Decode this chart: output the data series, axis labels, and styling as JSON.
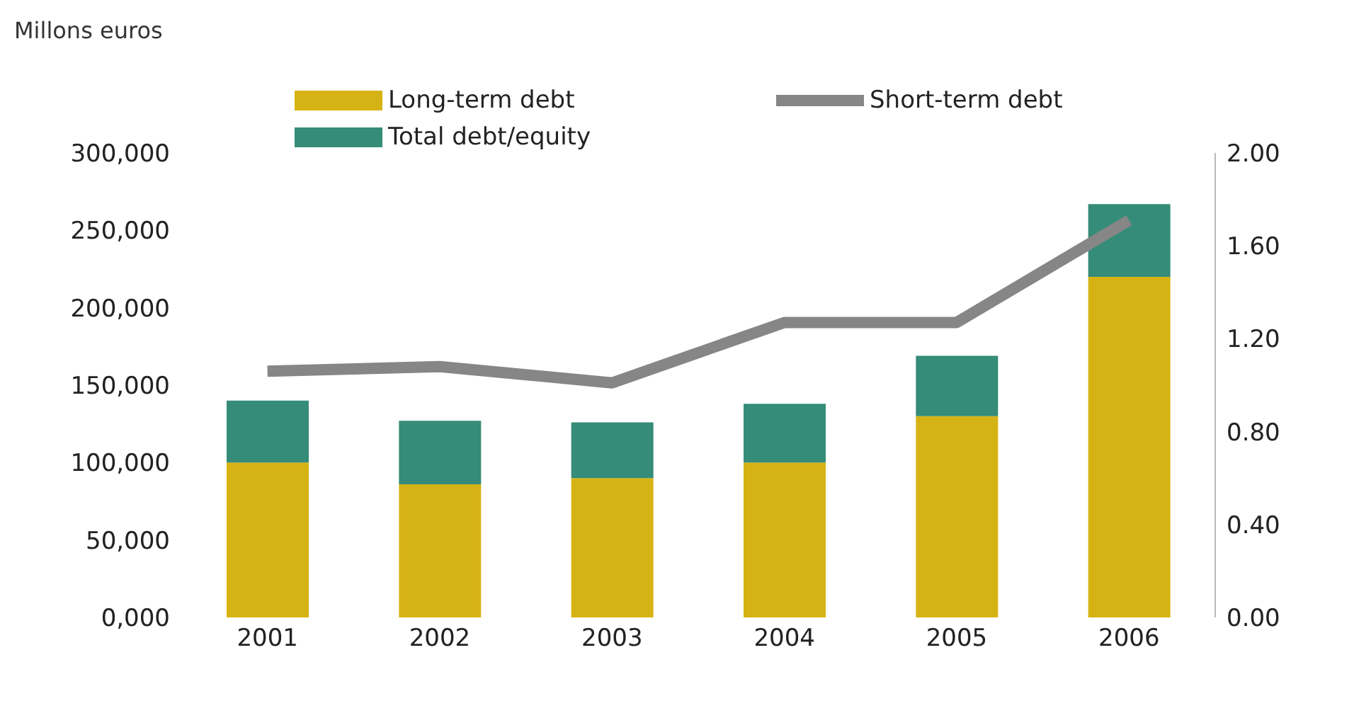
{
  "chart_data": {
    "type": "bar",
    "ylabel": "Millons euros",
    "categories": [
      "2001",
      "2002",
      "2003",
      "2004",
      "2005",
      "2006"
    ],
    "stacked": true,
    "legend": "top",
    "series": [
      {
        "name": "Long-term debt",
        "color": "#d6b314",
        "values": [
          100000,
          86000,
          90000,
          100000,
          130000,
          220000
        ]
      },
      {
        "name": "Total debt/equity",
        "color": "#358c78",
        "values": [
          40000,
          41000,
          36000,
          38000,
          39000,
          47000
        ]
      },
      {
        "name": "Short-term debt",
        "type": "line",
        "axis": "y2",
        "color": "#868686",
        "values": [
          1.06,
          1.08,
          1.01,
          1.27,
          1.27,
          1.71
        ]
      }
    ],
    "ylim": [
      0,
      300000
    ],
    "yticks": [
      {
        "value": 0,
        "label": "0,000"
      },
      {
        "value": 50000,
        "label": "50,000"
      },
      {
        "value": 100000,
        "label": "100,000"
      },
      {
        "value": 150000,
        "label": "150,000"
      },
      {
        "value": 200000,
        "label": "200,000"
      },
      {
        "value": 250000,
        "label": "250,000"
      },
      {
        "value": 300000,
        "label": "300,000"
      }
    ],
    "y2lim": [
      0,
      2
    ],
    "y2ticks": [
      {
        "value": 0,
        "label": "0.00"
      },
      {
        "value": 0.4,
        "label": "0.40"
      },
      {
        "value": 0.8,
        "label": "0.80"
      },
      {
        "value": 1.2,
        "label": "1.20"
      },
      {
        "value": 1.6,
        "label": "1.60"
      },
      {
        "value": 2,
        "label": "2.00"
      }
    ],
    "marker": "none"
  }
}
